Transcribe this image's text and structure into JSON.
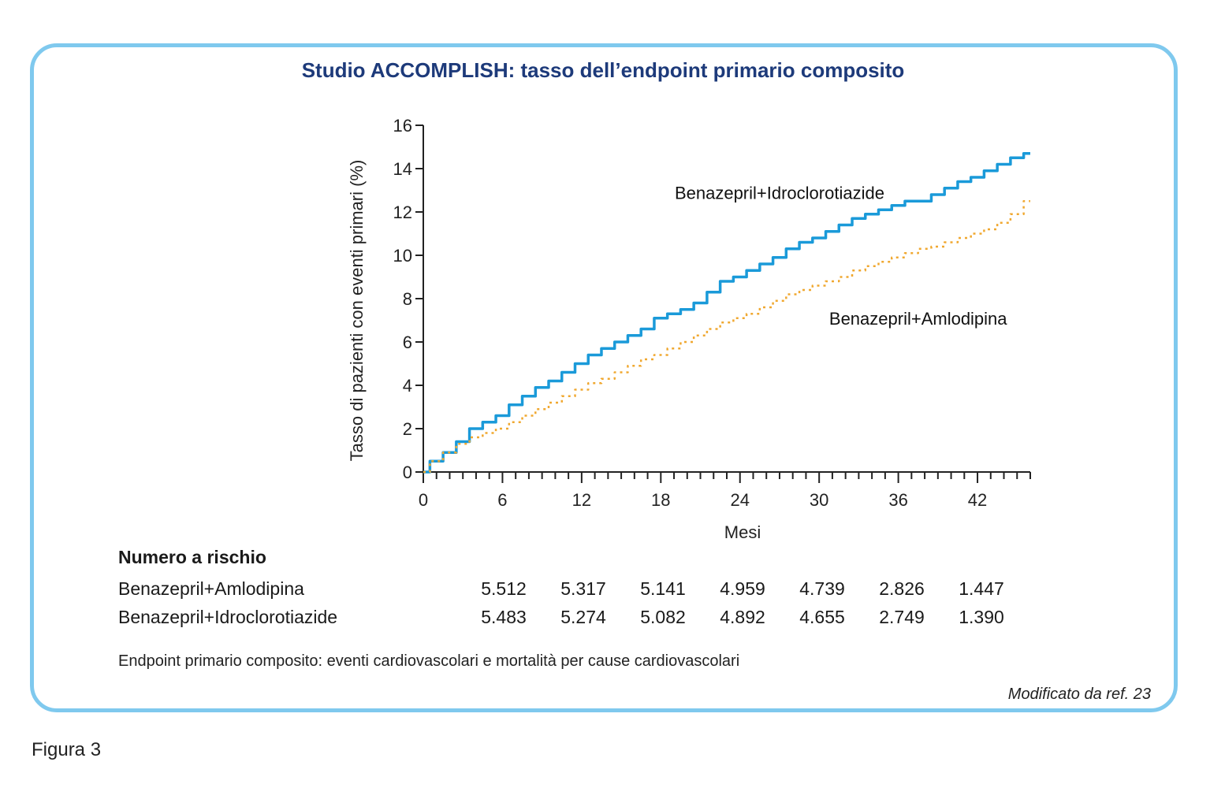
{
  "figure_label": "Figura 3",
  "title": "Studio ACCOMPLISH: tasso dell’endpoint primario composito",
  "chart_data": {
    "type": "line",
    "title": "Studio ACCOMPLISH: tasso dell’endpoint primario composito",
    "xlabel": "Mesi",
    "ylabel": "Tasso di pazienti con eventi primari (%)",
    "xlim": [
      0,
      46
    ],
    "ylim": [
      0,
      16
    ],
    "x_ticks": [
      0,
      6,
      12,
      18,
      24,
      30,
      36,
      42
    ],
    "y_ticks": [
      0,
      2,
      4,
      6,
      8,
      10,
      12,
      14,
      16
    ],
    "grid": false,
    "legend": "inline labels",
    "series": [
      {
        "name": "Benazepril+Idroclorotiazide",
        "color": "#1a9ad9",
        "style": "solid",
        "x": [
          0,
          1,
          2,
          3,
          4,
          5,
          6,
          7,
          8,
          9,
          10,
          11,
          12,
          13,
          14,
          15,
          16,
          17,
          18,
          19,
          20,
          21,
          22,
          23,
          24,
          25,
          26,
          27,
          28,
          29,
          30,
          31,
          32,
          33,
          34,
          35,
          36,
          37,
          38,
          39,
          40,
          41,
          42,
          43,
          44,
          45,
          46
        ],
        "values": [
          0,
          0.5,
          0.9,
          1.4,
          2.0,
          2.3,
          2.6,
          3.1,
          3.5,
          3.9,
          4.2,
          4.6,
          5.0,
          5.4,
          5.7,
          6.0,
          6.3,
          6.6,
          7.1,
          7.3,
          7.5,
          7.8,
          8.3,
          8.8,
          9.0,
          9.3,
          9.6,
          9.9,
          10.3,
          10.6,
          10.8,
          11.1,
          11.4,
          11.7,
          11.9,
          12.1,
          12.3,
          12.5,
          12.5,
          12.8,
          13.1,
          13.4,
          13.6,
          13.9,
          14.2,
          14.5,
          14.7
        ]
      },
      {
        "name": "Benazepril+Amlodipina",
        "color": "#f0a830",
        "style": "dotted",
        "x": [
          0,
          1,
          2,
          3,
          4,
          5,
          6,
          7,
          8,
          9,
          10,
          11,
          12,
          13,
          14,
          15,
          16,
          17,
          18,
          19,
          20,
          21,
          22,
          23,
          24,
          25,
          26,
          27,
          28,
          29,
          30,
          31,
          32,
          33,
          34,
          35,
          36,
          37,
          38,
          39,
          40,
          41,
          42,
          43,
          44,
          45,
          46
        ],
        "values": [
          0,
          0.5,
          0.9,
          1.3,
          1.6,
          1.8,
          2.0,
          2.3,
          2.6,
          2.9,
          3.2,
          3.5,
          3.8,
          4.1,
          4.3,
          4.6,
          4.9,
          5.2,
          5.4,
          5.7,
          6.0,
          6.3,
          6.6,
          6.9,
          7.1,
          7.3,
          7.6,
          7.9,
          8.2,
          8.4,
          8.6,
          8.8,
          9.0,
          9.3,
          9.5,
          9.7,
          9.9,
          10.1,
          10.3,
          10.4,
          10.6,
          10.8,
          11.0,
          11.2,
          11.5,
          11.9,
          12.5
        ]
      }
    ],
    "annotations": [
      {
        "text": "Benazepril+Idroclorotiazide",
        "x": 27,
        "y": 12.6
      },
      {
        "text": "Benazepril+Amlodipina",
        "x": 37.5,
        "y": 6.8
      }
    ]
  },
  "risk_table": {
    "heading": "Numero a rischio",
    "rows": [
      {
        "label": "Benazepril+Amlodipina",
        "values": [
          "5.512",
          "5.317",
          "5.141",
          "4.959",
          "4.739",
          "2.826",
          "1.447"
        ]
      },
      {
        "label": "Benazepril+Idroclorotiazide",
        "values": [
          "5.483",
          "5.274",
          "5.082",
          "4.892",
          "4.655",
          "2.749",
          "1.390"
        ]
      }
    ]
  },
  "footnote": "Endpoint primario composito: eventi cardiovascolari e mortalità per cause cardiovascolari",
  "source": "Modificato da ref. 23"
}
